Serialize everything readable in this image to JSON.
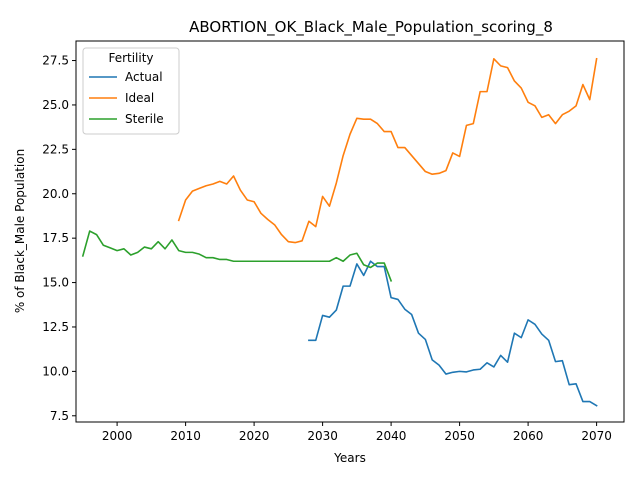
{
  "chart_data": {
    "type": "line",
    "title": "ABORTION_OK_Black_Male_Population_scoring_8",
    "xlabel": "Years",
    "ylabel": "% of Black_Male Population",
    "xlim": [
      1994,
      2074
    ],
    "ylim": [
      7.15,
      28.6
    ],
    "xticks": [
      2000,
      2010,
      2020,
      2030,
      2040,
      2050,
      2060,
      2070
    ],
    "yticks": [
      7.5,
      10.0,
      12.5,
      15.0,
      17.5,
      20.0,
      22.5,
      25.0,
      27.5
    ],
    "ytick_labels": [
      "7.5",
      "10.0",
      "12.5",
      "15.0",
      "17.5",
      "20.0",
      "22.5",
      "25.0",
      "27.5"
    ],
    "grid": false,
    "legend": {
      "title": "Fertility",
      "position": "top-left"
    },
    "series": [
      {
        "name": "Actual",
        "color": "#1f77b4",
        "x": [
          2028,
          2029,
          2030,
          2031,
          2032,
          2033,
          2034,
          2035,
          2036,
          2037,
          2038,
          2039,
          2040,
          2041,
          2042,
          2043,
          2044,
          2045,
          2046,
          2047,
          2048,
          2049,
          2050,
          2051,
          2052,
          2053,
          2054,
          2055,
          2056,
          2057,
          2058,
          2059,
          2060,
          2061,
          2062,
          2063,
          2064,
          2065,
          2066,
          2067,
          2068,
          2069,
          2070
        ],
        "y": [
          11.75,
          11.75,
          13.15,
          13.05,
          13.45,
          14.8,
          14.8,
          16.05,
          15.4,
          16.2,
          15.9,
          15.9,
          14.15,
          14.05,
          13.5,
          13.2,
          12.15,
          11.8,
          10.65,
          10.35,
          9.85,
          9.95,
          10.0,
          9.97,
          10.08,
          10.12,
          10.48,
          10.25,
          10.9,
          10.52,
          12.15,
          11.9,
          12.9,
          12.65,
          12.1,
          11.75,
          10.55,
          10.6,
          9.25,
          9.3,
          8.3,
          8.3,
          8.07
        ]
      },
      {
        "name": "Ideal",
        "color": "#ff7f0e",
        "x": [
          2009,
          2010,
          2011,
          2012,
          2013,
          2014,
          2015,
          2016,
          2017,
          2018,
          2019,
          2020,
          2021,
          2022,
          2023,
          2024,
          2025,
          2026,
          2027,
          2028,
          2029,
          2030,
          2031,
          2032,
          2033,
          2034,
          2035,
          2036,
          2037,
          2038,
          2039,
          2040,
          2041,
          2042,
          2043,
          2044,
          2045,
          2046,
          2047,
          2048,
          2049,
          2050,
          2051,
          2052,
          2053,
          2054,
          2055,
          2056,
          2057,
          2058,
          2059,
          2060,
          2061,
          2062,
          2063,
          2064,
          2065,
          2066,
          2067,
          2068,
          2069,
          2070
        ],
        "y": [
          18.5,
          19.65,
          20.15,
          20.3,
          20.45,
          20.55,
          20.7,
          20.55,
          21.0,
          20.2,
          19.65,
          19.55,
          18.9,
          18.55,
          18.25,
          17.7,
          17.3,
          17.25,
          17.35,
          18.45,
          18.15,
          19.85,
          19.3,
          20.6,
          22.15,
          23.35,
          24.25,
          24.2,
          24.2,
          23.95,
          23.5,
          23.5,
          22.6,
          22.6,
          22.15,
          21.7,
          21.25,
          21.1,
          21.15,
          21.3,
          22.3,
          22.1,
          23.85,
          23.95,
          25.75,
          25.75,
          27.6,
          27.2,
          27.1,
          26.35,
          25.95,
          25.15,
          24.95,
          24.3,
          24.45,
          23.95,
          24.45,
          24.65,
          24.95,
          26.15,
          25.3,
          27.6
        ]
      },
      {
        "name": "Sterile",
        "color": "#2ca02c",
        "x": [
          1995,
          1996,
          1997,
          1998,
          1999,
          2000,
          2001,
          2002,
          2003,
          2004,
          2005,
          2006,
          2007,
          2008,
          2009,
          2010,
          2011,
          2012,
          2013,
          2014,
          2015,
          2016,
          2017,
          2018,
          2019,
          2020,
          2021,
          2022,
          2023,
          2024,
          2025,
          2026,
          2027,
          2028,
          2029,
          2030,
          2031,
          2032,
          2033,
          2034,
          2035,
          2036,
          2037,
          2038,
          2039,
          2040
        ],
        "y": [
          16.5,
          17.9,
          17.7,
          17.1,
          16.95,
          16.8,
          16.9,
          16.55,
          16.7,
          17.0,
          16.9,
          17.3,
          16.9,
          17.4,
          16.8,
          16.7,
          16.7,
          16.6,
          16.4,
          16.4,
          16.3,
          16.3,
          16.2,
          16.2,
          16.2,
          16.2,
          16.2,
          16.2,
          16.2,
          16.2,
          16.2,
          16.2,
          16.2,
          16.2,
          16.2,
          16.2,
          16.2,
          16.4,
          16.2,
          16.55,
          16.65,
          16.0,
          15.85,
          16.1,
          16.1,
          15.1
        ]
      }
    ]
  }
}
